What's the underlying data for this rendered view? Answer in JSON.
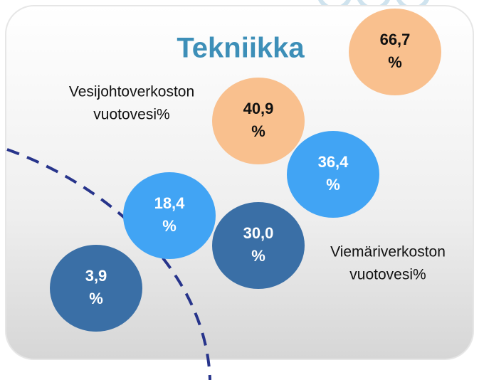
{
  "title": "Tekniikka",
  "labels": [
    {
      "lines": [
        "Vesijohtoverkoston",
        "vuotovesi%"
      ]
    },
    {
      "lines": [
        "Viemäriverkoston",
        "vuotovesi%"
      ]
    }
  ],
  "bubbles": [
    {
      "lines": [
        "66,7",
        "%"
      ],
      "style": "orange"
    },
    {
      "lines": [
        "40,9",
        "%"
      ],
      "style": "orange"
    },
    {
      "lines": [
        "36,4",
        "%"
      ],
      "style": "light-blue"
    },
    {
      "lines": [
        "18,4",
        "%"
      ],
      "style": "light-blue"
    },
    {
      "lines": [
        "30,0",
        "%"
      ],
      "style": "dark-blue"
    },
    {
      "lines": [
        "3,9",
        "%"
      ],
      "style": "dark-blue"
    }
  ]
}
